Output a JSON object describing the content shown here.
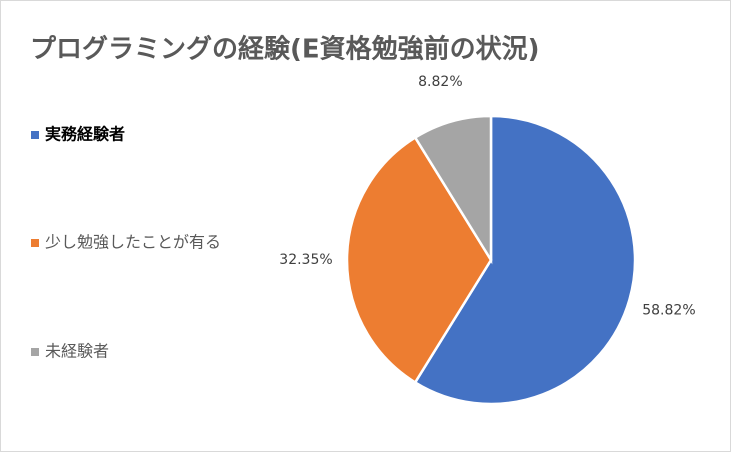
{
  "chart_data": {
    "type": "pie",
    "title": "プログラミングの経験(E資格勉強前の状況)",
    "categories": [
      "実務経験者",
      "少し勉強したことが有る",
      "未経験者"
    ],
    "values": [
      58.82,
      32.35,
      8.82
    ],
    "value_labels": [
      "58.82%",
      "32.35%",
      "8.82%"
    ],
    "colors": [
      "#4472c4",
      "#ed7d31",
      "#a5a5a5"
    ],
    "legend": "left"
  }
}
